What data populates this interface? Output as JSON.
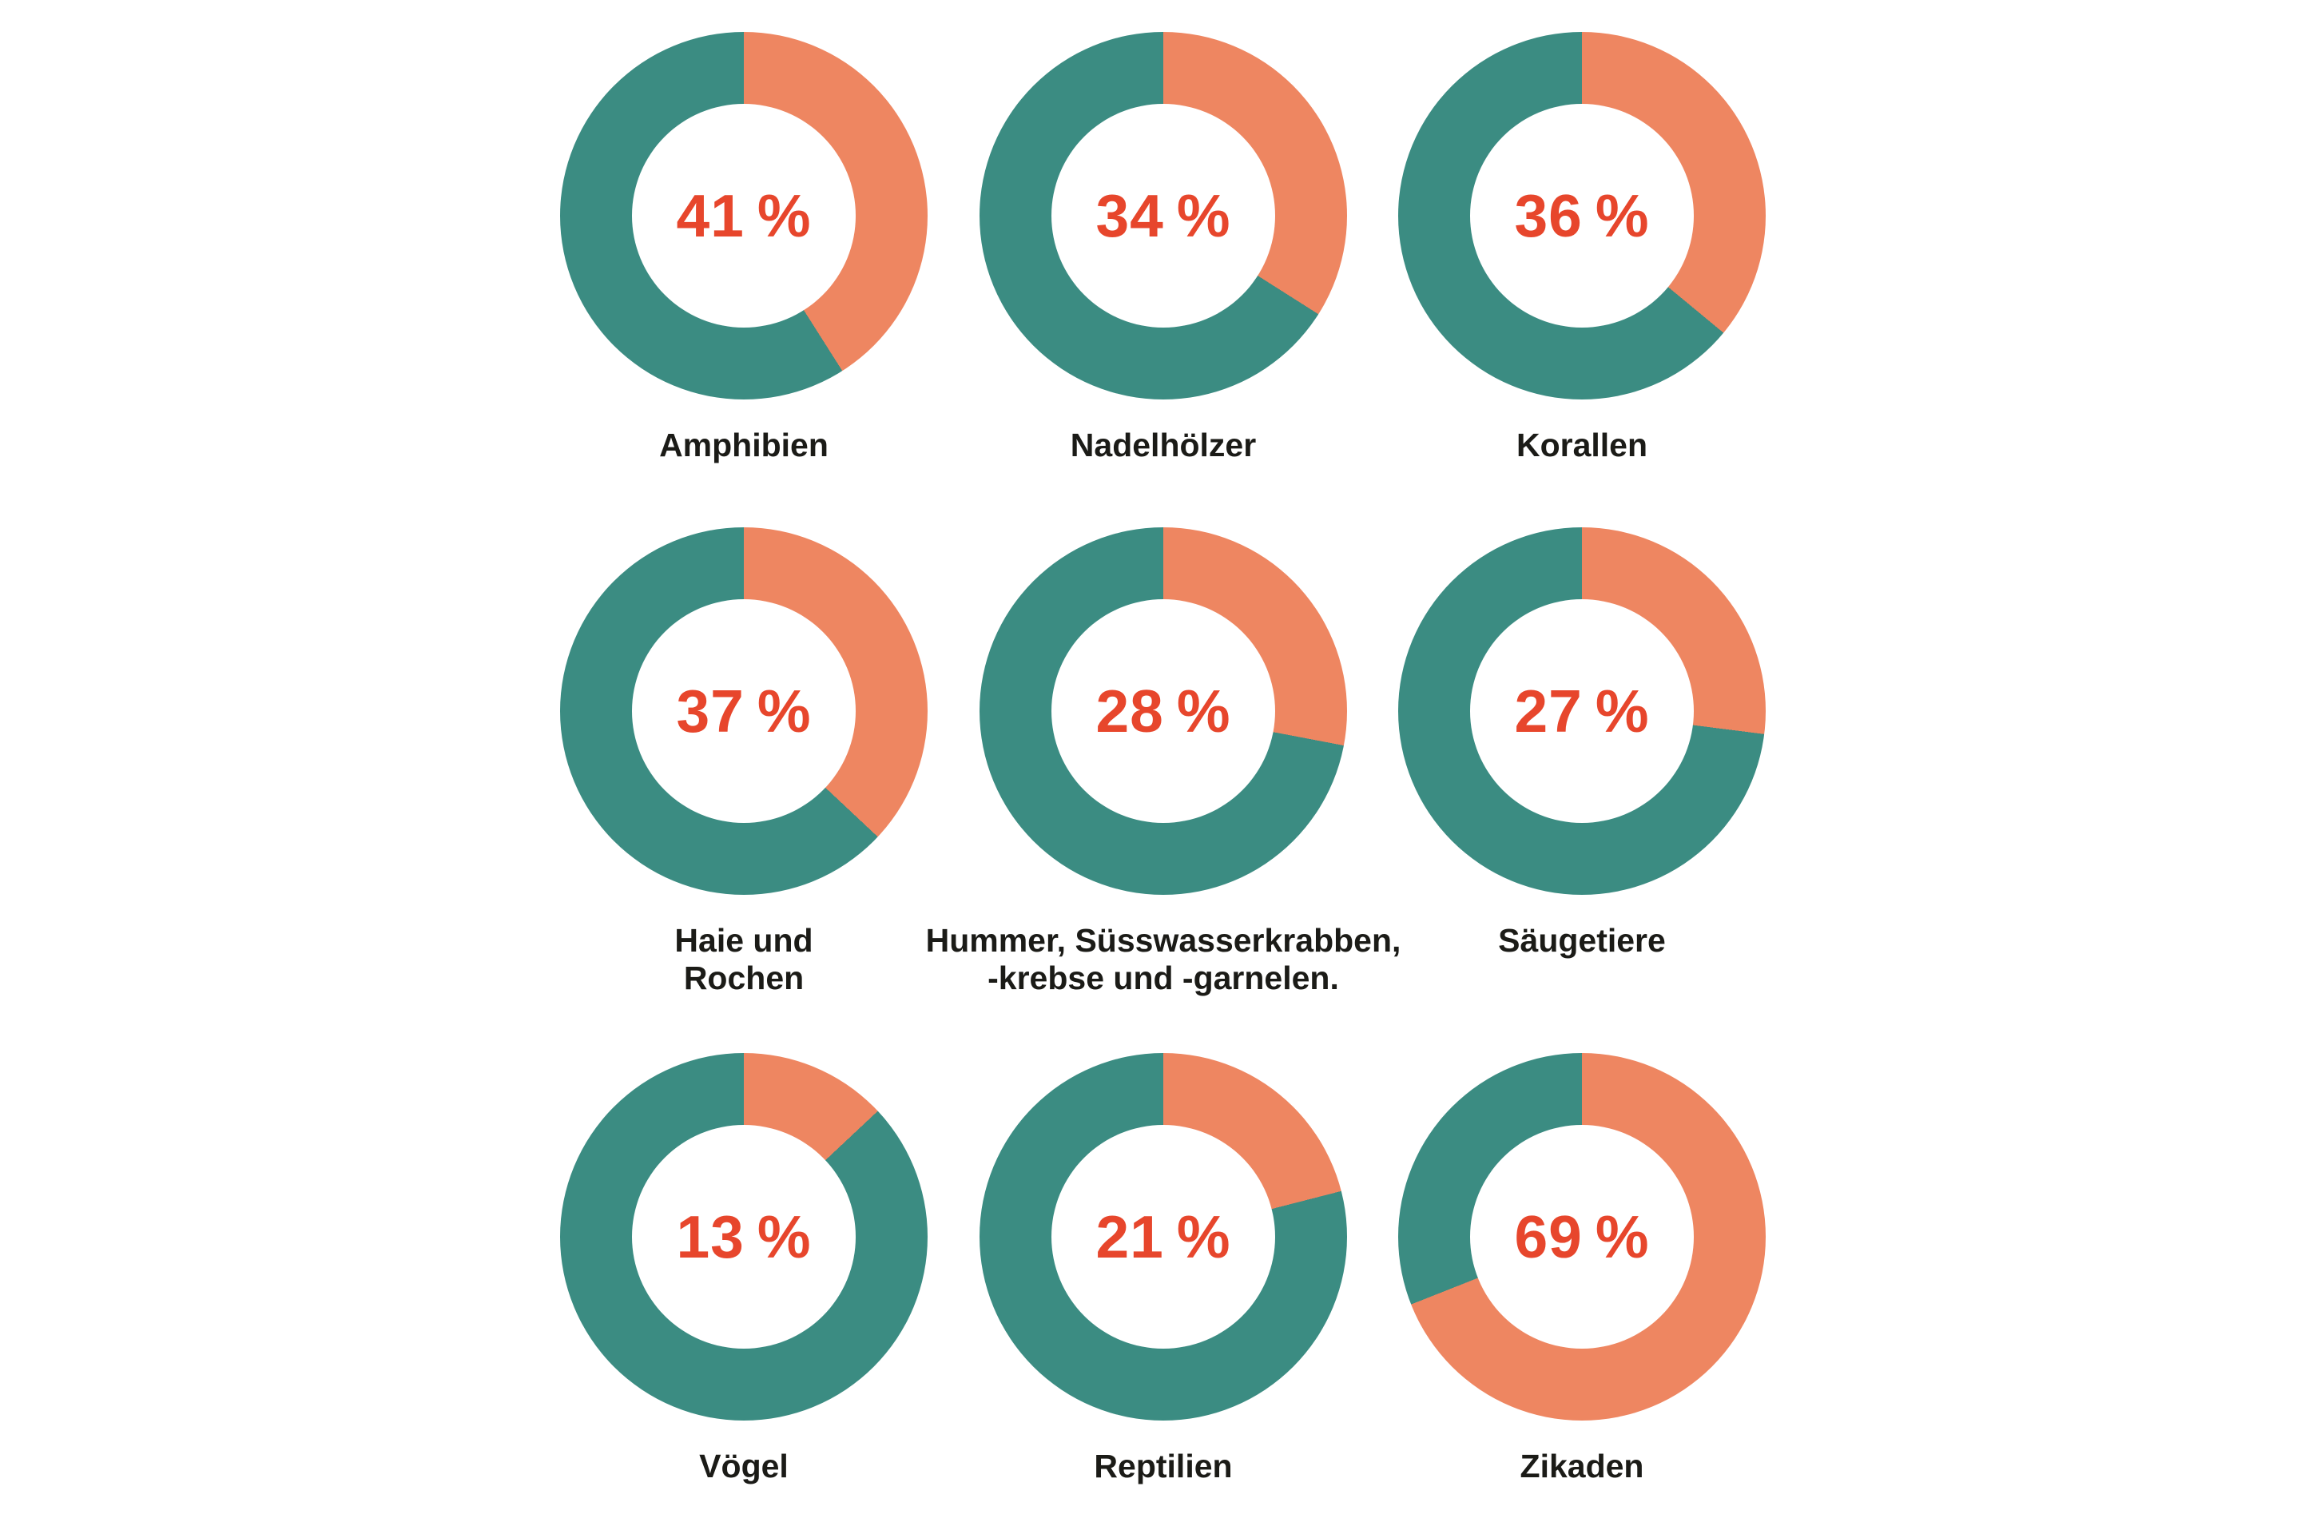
{
  "colors": {
    "background": "#ffffff",
    "value_slice_orange": "#ee8661",
    "remainder_slice_teal": "#3b8c82",
    "percent_text": "#e7462c",
    "label_text": "#1b1b17"
  },
  "chart_data": {
    "type": "pie",
    "subtype": "donut",
    "layout": "3x3-grid",
    "unit": "%",
    "slice_start": "top",
    "slice_direction": "clockwise",
    "legend": "none",
    "categories": [
      "Amphibien",
      "Nadelhölzer",
      "Korallen",
      "Haie und Rochen",
      "Hummer, Süsswasserkrabben, -krebse und -garnelen.",
      "Säugetiere",
      "Vögel",
      "Reptilien",
      "Zikaden"
    ],
    "values": [
      41,
      34,
      36,
      37,
      28,
      27,
      13,
      21,
      69
    ],
    "charts": [
      {
        "value": 41,
        "display": "41 %",
        "label_lines": [
          "Amphibien"
        ]
      },
      {
        "value": 34,
        "display": "34 %",
        "label_lines": [
          "Nadelhölzer"
        ]
      },
      {
        "value": 36,
        "display": "36 %",
        "label_lines": [
          "Korallen"
        ]
      },
      {
        "value": 37,
        "display": "37 %",
        "label_lines": [
          "Haie und",
          "Rochen"
        ]
      },
      {
        "value": 28,
        "display": "28 %",
        "label_lines": [
          "Hummer, Süsswasserkrabben,",
          "-krebse und -garnelen."
        ]
      },
      {
        "value": 27,
        "display": "27 %",
        "label_lines": [
          "Säugetiere"
        ]
      },
      {
        "value": 13,
        "display": "13 %",
        "label_lines": [
          "Vögel"
        ]
      },
      {
        "value": 21,
        "display": "21 %",
        "label_lines": [
          "Reptilien"
        ]
      },
      {
        "value": 69,
        "display": "69 %",
        "label_lines": [
          "Zikaden"
        ]
      }
    ]
  }
}
